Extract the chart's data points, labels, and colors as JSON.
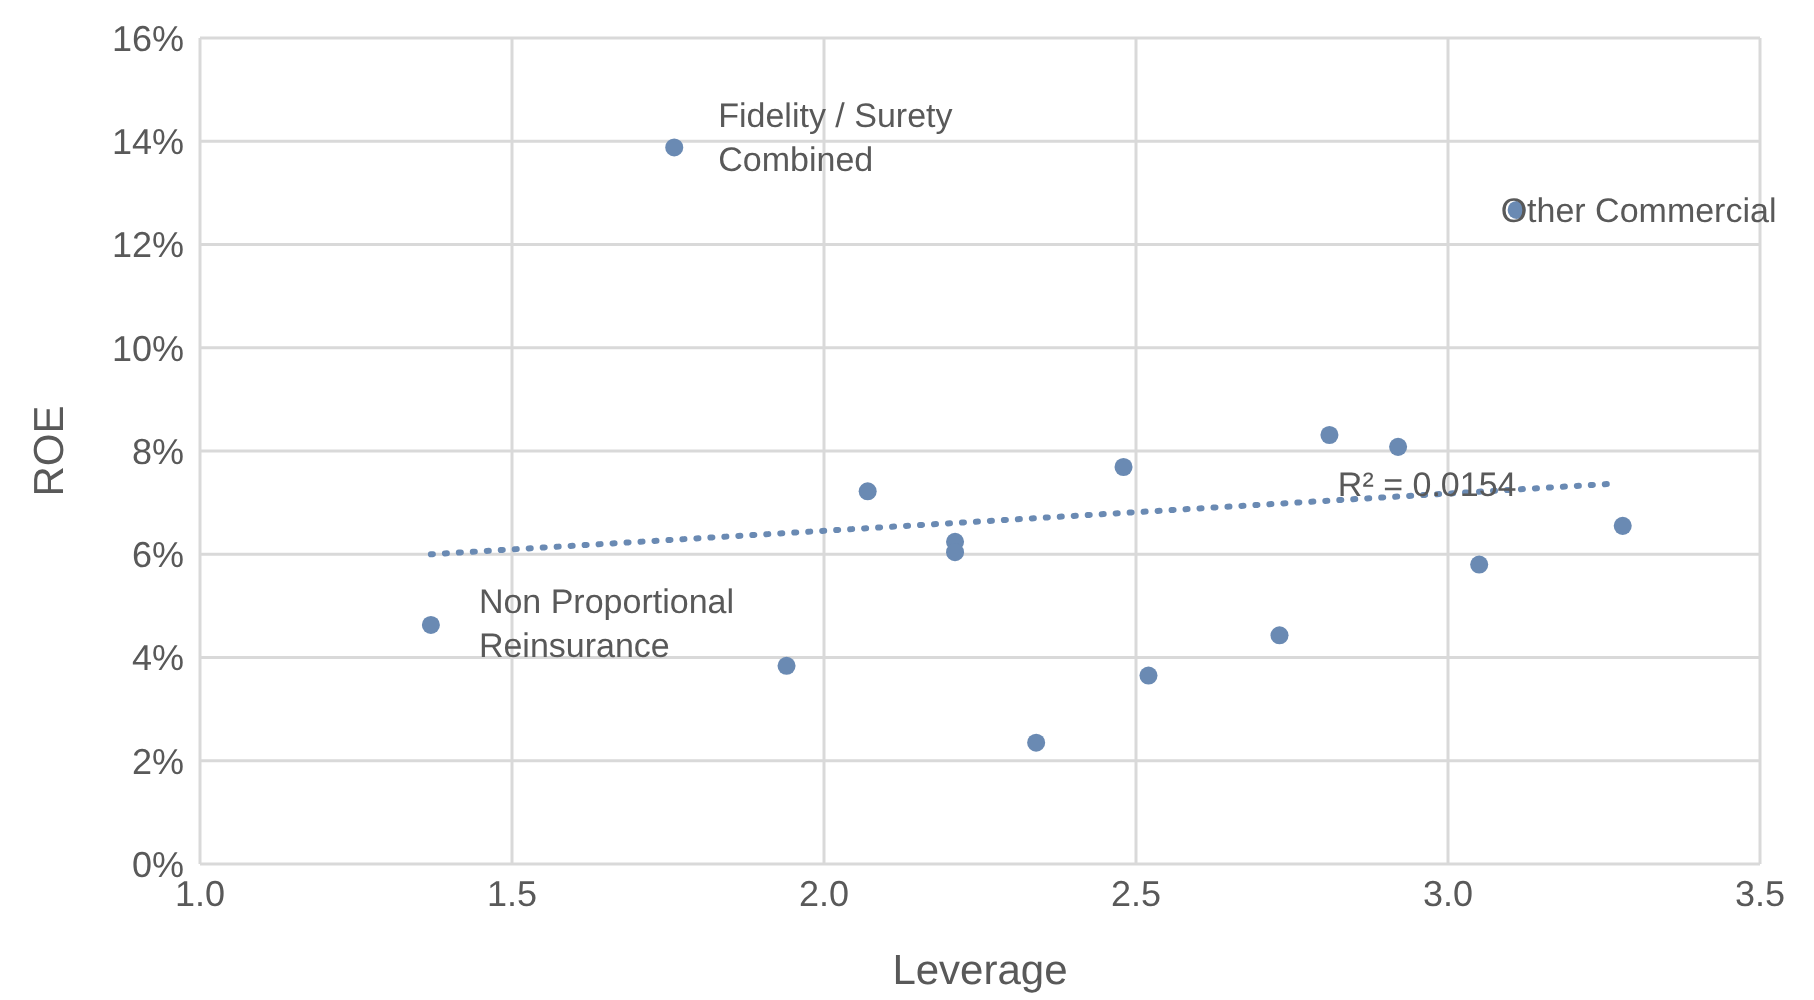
{
  "chart_data": {
    "type": "scatter",
    "xlabel": "Leverage",
    "ylabel": "ROE",
    "xlim": [
      1,
      3.5
    ],
    "xticks": [
      {
        "value": 1,
        "label": "1.0"
      },
      {
        "value": 1.5,
        "label": "1.5"
      },
      {
        "value": 2,
        "label": "2.0"
      },
      {
        "value": 2.5,
        "label": "2.5"
      },
      {
        "value": 3,
        "label": "3.0"
      },
      {
        "value": 3.5,
        "label": "3.5"
      }
    ],
    "ylim": [
      0,
      16
    ],
    "yticks": [
      {
        "value": 0,
        "label": "0%"
      },
      {
        "value": 2,
        "label": "2%"
      },
      {
        "value": 4,
        "label": "4%"
      },
      {
        "value": 6,
        "label": "6%"
      },
      {
        "value": 8,
        "label": "8%"
      },
      {
        "value": 10,
        "label": "10%"
      },
      {
        "value": 12,
        "label": "12%"
      },
      {
        "value": 14,
        "label": "14%"
      },
      {
        "value": 16,
        "label": "16%"
      }
    ],
    "grid": true,
    "marker": "circle",
    "series": [
      {
        "color": "#6a8ab3",
        "x": [
          1.37,
          1.76,
          1.94,
          2.07,
          2.21,
          2.21,
          2.34,
          2.48,
          2.52,
          2.73,
          2.81,
          2.92,
          3.05,
          3.11,
          3.28
        ],
        "values": [
          4.63,
          13.88,
          3.84,
          7.22,
          6.24,
          6.04,
          2.35,
          7.69,
          3.65,
          4.43,
          8.31,
          8.08,
          5.8,
          12.67,
          6.55
        ]
      },
      {
        "type": "line",
        "color": "#6a8ab3",
        "line_style": "dotted",
        "marker": "none",
        "x": [
          1.37,
          3.27
        ],
        "values": [
          6.0,
          7.37
        ]
      }
    ],
    "annotations": [
      {
        "text": "Fidelity / Surety Combined",
        "x": 1.76,
        "y": 13.88
      },
      {
        "text": "Non Proportional Reinsurance",
        "x": 1.37,
        "y": 4.63
      },
      {
        "text": "Other Commercial",
        "x": 3.11,
        "y": 12.67
      },
      "R² = 0.0154"
    ]
  }
}
